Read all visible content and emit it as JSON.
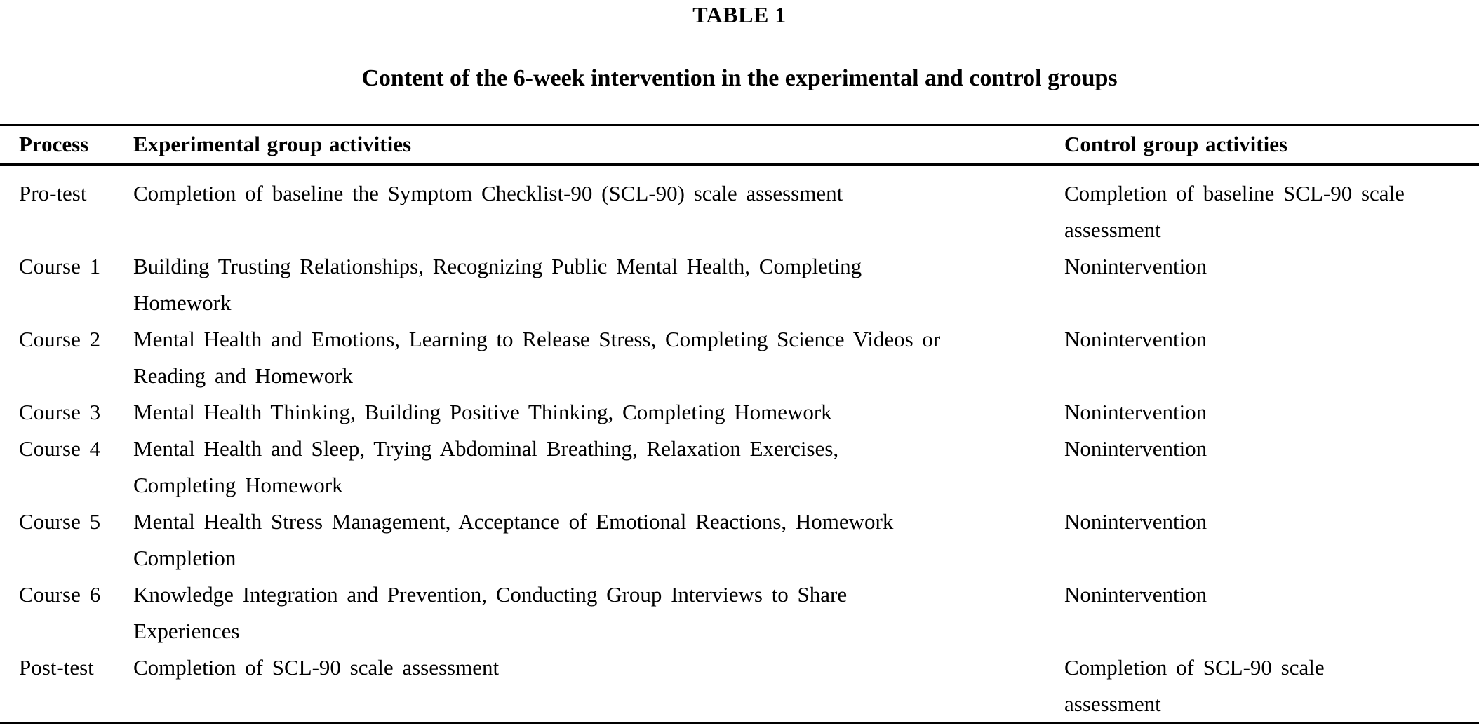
{
  "table": {
    "label": "TABLE 1",
    "title": "Content of the 6-week intervention in the experimental and control groups",
    "columns": [
      "Process",
      "Experimental group activities",
      "Control group activities"
    ],
    "rows": [
      {
        "process": "Pro-test",
        "experimental": [
          "Completion of baseline the Symptom Checklist-90 (SCL-90) scale assessment"
        ],
        "control": [
          "Completion of baseline SCL-90 scale",
          "assessment"
        ]
      },
      {
        "process": "Course 1",
        "experimental": [
          "Building Trusting Relationships, Recognizing Public Mental Health, Completing",
          "Homework"
        ],
        "control": [
          "Nonintervention"
        ]
      },
      {
        "process": "Course 2",
        "experimental": [
          "Mental Health and Emotions, Learning to Release Stress, Completing Science Videos or",
          "Reading and Homework"
        ],
        "control": [
          "Nonintervention"
        ]
      },
      {
        "process": "Course 3",
        "experimental": [
          "Mental Health Thinking, Building Positive Thinking, Completing Homework"
        ],
        "control": [
          "Nonintervention"
        ]
      },
      {
        "process": "Course 4",
        "experimental": [
          "Mental Health and Sleep, Trying Abdominal Breathing, Relaxation Exercises,",
          "Completing Homework"
        ],
        "control": [
          "Nonintervention"
        ]
      },
      {
        "process": "Course 5",
        "experimental": [
          "Mental Health Stress Management, Acceptance of Emotional Reactions, Homework",
          "Completion"
        ],
        "control": [
          "Nonintervention"
        ]
      },
      {
        "process": "Course 6",
        "experimental": [
          "Knowledge Integration and Prevention, Conducting Group Interviews to Share",
          "Experiences"
        ],
        "control": [
          "Nonintervention"
        ]
      },
      {
        "process": "Post-test",
        "experimental": [
          "Completion of SCL-90 scale assessment"
        ],
        "control": [
          "Completion of SCL-90 scale",
          "assessment"
        ]
      }
    ]
  },
  "colors": {
    "text": "#000000",
    "background": "#ffffff",
    "rule": "#000000"
  }
}
